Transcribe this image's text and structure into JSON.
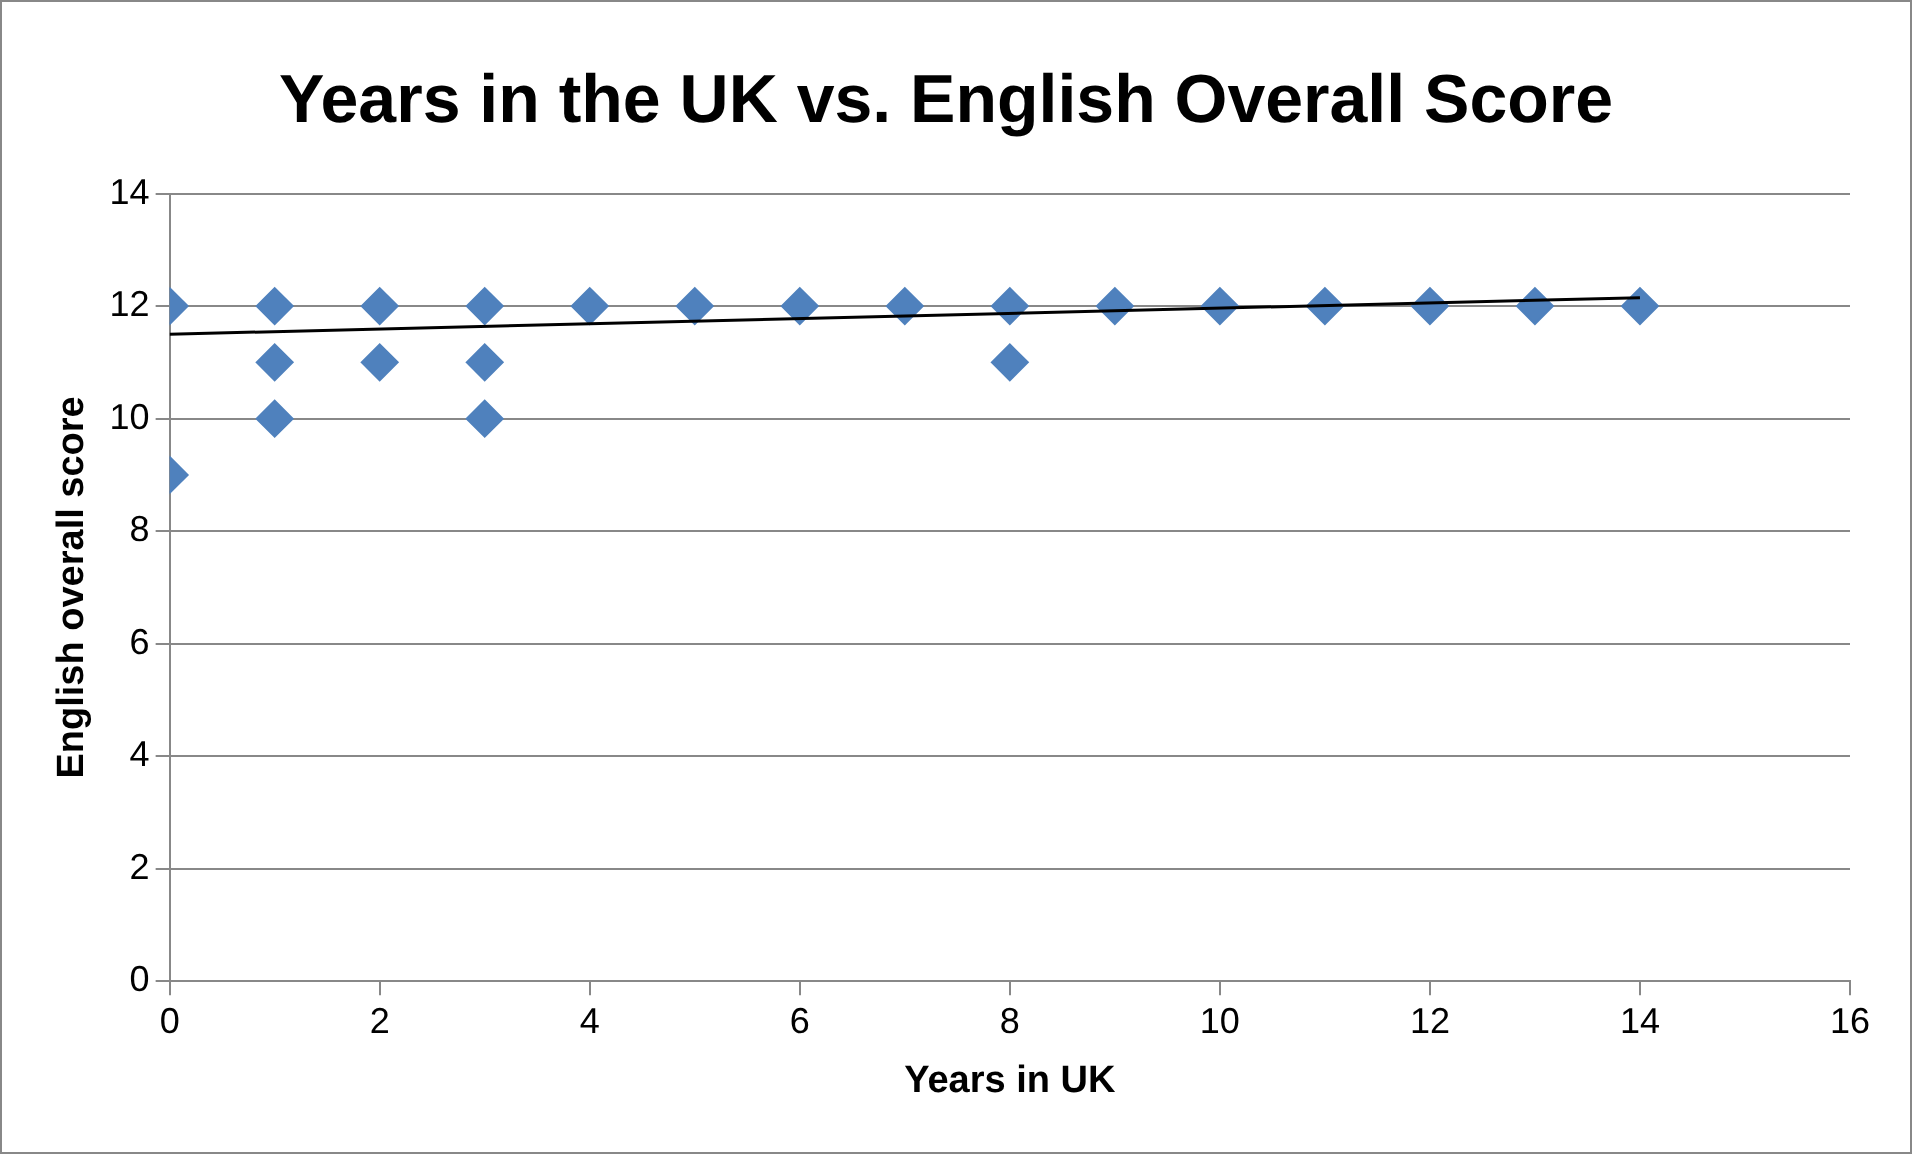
{
  "chart_data": {
    "type": "scatter",
    "title": "Years in the UK vs. English Overall Score",
    "xlabel": "Years in UK",
    "ylabel": "English overall score",
    "xlim": [
      0,
      16
    ],
    "xticks": [
      0,
      2,
      4,
      6,
      8,
      10,
      12,
      14,
      16
    ],
    "ylim": [
      0,
      14
    ],
    "yticks": [
      0,
      2,
      4,
      6,
      8,
      10,
      12,
      14
    ],
    "grid": "y",
    "legend": false,
    "marker": "diamond",
    "series": [
      {
        "color": "#4f81bd",
        "x": [
          0,
          0,
          1,
          1,
          1,
          2,
          2,
          3,
          3,
          3,
          4,
          5,
          6,
          7,
          8,
          8,
          9,
          10,
          11,
          12,
          13,
          14
        ],
        "values": [
          12,
          9,
          12,
          11,
          10,
          12,
          11,
          12,
          11,
          10,
          12,
          12,
          12,
          12,
          12,
          11,
          12,
          12,
          12,
          12,
          12,
          12
        ]
      },
      {
        "type": "line",
        "marker": "none",
        "color": "#000000",
        "x": [
          0,
          14
        ],
        "values": [
          11.5,
          12.15
        ]
      }
    ]
  }
}
